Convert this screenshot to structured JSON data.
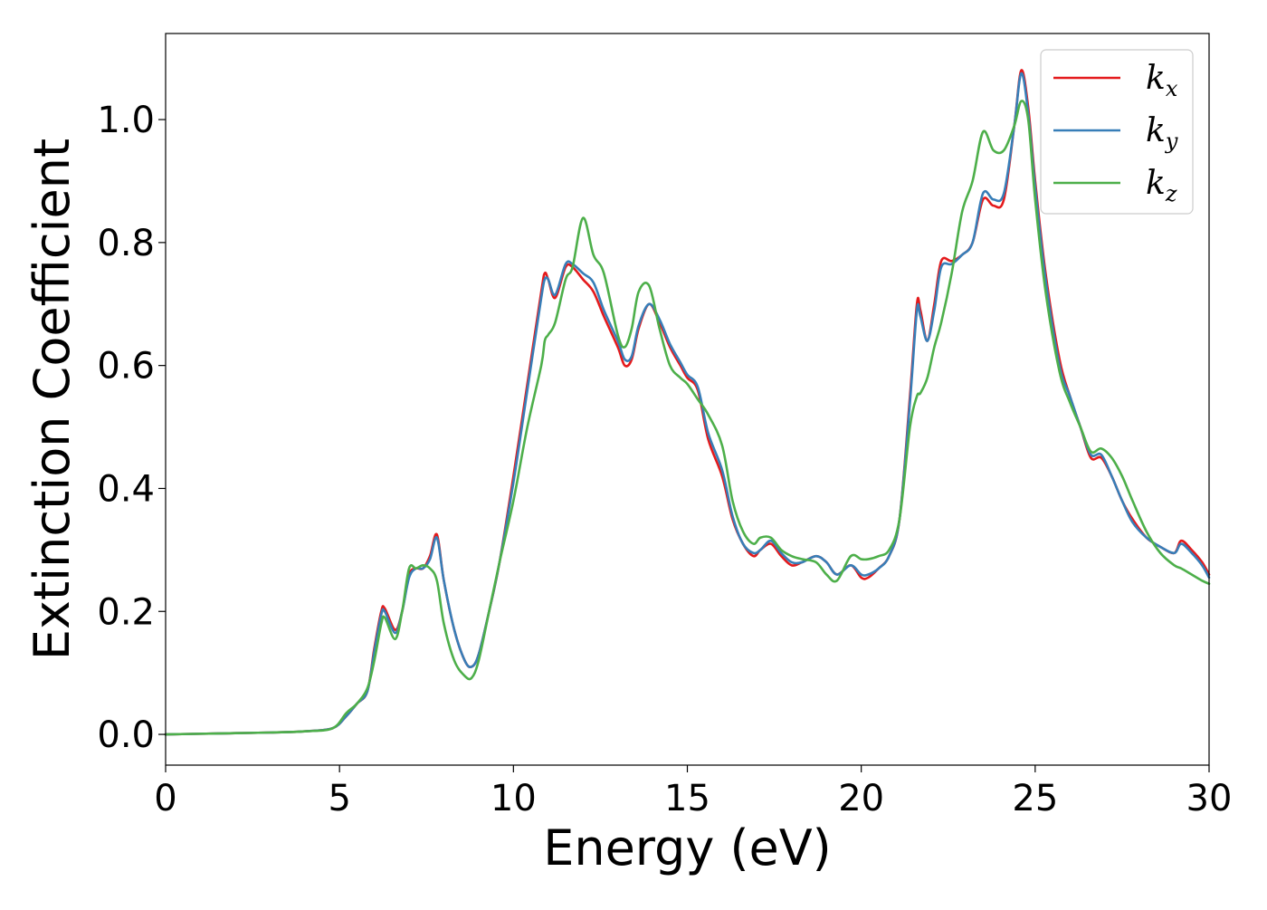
{
  "chart_data": {
    "type": "line",
    "title": "",
    "xlabel": "Energy (eV)",
    "ylabel": "Extinction Coefficient",
    "xlim": [
      0,
      30
    ],
    "ylim": [
      -0.05,
      1.14
    ],
    "xticks": [
      0,
      5,
      10,
      15,
      20,
      25,
      30
    ],
    "xtick_labels": [
      "0",
      "5",
      "10",
      "15",
      "20",
      "25",
      "30"
    ],
    "yticks": [
      0.0,
      0.2,
      0.4,
      0.6,
      0.8,
      1.0
    ],
    "ytick_labels": [
      "0.0",
      "0.2",
      "0.4",
      "0.6",
      "0.8",
      "1.0"
    ],
    "grid": false,
    "legend_position": "top-right",
    "series": [
      {
        "name": "k_x",
        "label_base": "k",
        "label_sub": "x",
        "color": "#e41a1c",
        "x": [
          0,
          1,
          2,
          3,
          4,
          4.8,
          5.2,
          5.5,
          5.8,
          6.0,
          6.2,
          6.3,
          6.6,
          6.8,
          7.0,
          7.2,
          7.4,
          7.6,
          7.8,
          8.0,
          8.3,
          8.6,
          8.8,
          9.0,
          9.3,
          9.6,
          10.0,
          10.4,
          10.8,
          10.9,
          11.0,
          11.2,
          11.5,
          11.7,
          12.0,
          12.3,
          12.6,
          13.0,
          13.2,
          13.4,
          13.6,
          13.9,
          14.2,
          14.5,
          14.8,
          15.0,
          15.3,
          15.6,
          16.0,
          16.3,
          16.6,
          16.9,
          17.1,
          17.4,
          17.7,
          18.0,
          18.3,
          18.7,
          19.0,
          19.3,
          19.7,
          20.0,
          20.2,
          20.5,
          20.8,
          21.1,
          21.4,
          21.6,
          21.7,
          21.9,
          22.1,
          22.3,
          22.6,
          22.9,
          23.2,
          23.5,
          23.8,
          24.1,
          24.4,
          24.6,
          24.8,
          25.0,
          25.3,
          25.7,
          26.0,
          26.3,
          26.6,
          26.9,
          27.2,
          27.5,
          27.8,
          28.2,
          28.6,
          29.0,
          29.2,
          29.5,
          29.8,
          30.0
        ],
        "y": [
          0.0,
          0.001,
          0.002,
          0.003,
          0.005,
          0.01,
          0.03,
          0.05,
          0.07,
          0.14,
          0.2,
          0.205,
          0.17,
          0.2,
          0.26,
          0.27,
          0.27,
          0.29,
          0.325,
          0.25,
          0.17,
          0.12,
          0.11,
          0.13,
          0.2,
          0.28,
          0.42,
          0.57,
          0.72,
          0.75,
          0.74,
          0.71,
          0.76,
          0.76,
          0.74,
          0.72,
          0.68,
          0.63,
          0.6,
          0.61,
          0.66,
          0.7,
          0.67,
          0.63,
          0.6,
          0.58,
          0.56,
          0.48,
          0.42,
          0.35,
          0.31,
          0.29,
          0.3,
          0.31,
          0.29,
          0.275,
          0.28,
          0.29,
          0.28,
          0.26,
          0.275,
          0.255,
          0.255,
          0.27,
          0.29,
          0.35,
          0.55,
          0.7,
          0.69,
          0.64,
          0.7,
          0.77,
          0.77,
          0.78,
          0.8,
          0.87,
          0.86,
          0.87,
          0.99,
          1.08,
          1.02,
          0.9,
          0.75,
          0.61,
          0.55,
          0.5,
          0.45,
          0.45,
          0.42,
          0.38,
          0.35,
          0.32,
          0.305,
          0.295,
          0.315,
          0.3,
          0.28,
          0.26
        ]
      },
      {
        "name": "k_y",
        "label_base": "k",
        "label_sub": "y",
        "color": "#377eb8",
        "x": [
          0,
          1,
          2,
          3,
          4,
          4.8,
          5.2,
          5.5,
          5.8,
          6.0,
          6.2,
          6.3,
          6.6,
          6.8,
          7.0,
          7.2,
          7.4,
          7.6,
          7.8,
          8.0,
          8.3,
          8.6,
          8.8,
          9.0,
          9.3,
          9.6,
          10.0,
          10.4,
          10.8,
          10.9,
          11.0,
          11.2,
          11.5,
          11.7,
          12.0,
          12.3,
          12.6,
          13.0,
          13.2,
          13.4,
          13.6,
          13.9,
          14.2,
          14.5,
          14.8,
          15.0,
          15.3,
          15.6,
          16.0,
          16.3,
          16.6,
          16.9,
          17.1,
          17.4,
          17.7,
          18.0,
          18.3,
          18.7,
          19.0,
          19.3,
          19.7,
          20.0,
          20.2,
          20.5,
          20.8,
          21.1,
          21.4,
          21.6,
          21.7,
          21.9,
          22.1,
          22.3,
          22.6,
          22.9,
          23.2,
          23.5,
          23.8,
          24.1,
          24.4,
          24.6,
          24.8,
          25.0,
          25.3,
          25.7,
          26.0,
          26.3,
          26.6,
          26.9,
          27.2,
          27.5,
          27.8,
          28.2,
          28.6,
          29.0,
          29.2,
          29.5,
          29.8,
          30.0
        ],
        "y": [
          0.0,
          0.001,
          0.002,
          0.003,
          0.005,
          0.01,
          0.03,
          0.05,
          0.07,
          0.135,
          0.195,
          0.2,
          0.165,
          0.2,
          0.255,
          0.27,
          0.27,
          0.285,
          0.32,
          0.25,
          0.17,
          0.12,
          0.11,
          0.13,
          0.2,
          0.28,
          0.41,
          0.56,
          0.71,
          0.74,
          0.74,
          0.715,
          0.765,
          0.765,
          0.75,
          0.735,
          0.69,
          0.64,
          0.61,
          0.615,
          0.665,
          0.7,
          0.675,
          0.635,
          0.605,
          0.585,
          0.565,
          0.49,
          0.43,
          0.355,
          0.31,
          0.295,
          0.3,
          0.315,
          0.295,
          0.28,
          0.28,
          0.29,
          0.28,
          0.26,
          0.275,
          0.26,
          0.26,
          0.27,
          0.29,
          0.35,
          0.54,
          0.69,
          0.68,
          0.64,
          0.69,
          0.76,
          0.765,
          0.78,
          0.8,
          0.88,
          0.87,
          0.88,
          0.99,
          1.075,
          1.01,
          0.89,
          0.74,
          0.6,
          0.55,
          0.5,
          0.455,
          0.455,
          0.42,
          0.38,
          0.345,
          0.32,
          0.305,
          0.295,
          0.31,
          0.295,
          0.275,
          0.255
        ]
      },
      {
        "name": "k_z",
        "label_base": "k",
        "label_sub": "z",
        "color": "#4daf4a",
        "x": [
          0,
          1,
          2,
          3,
          4,
          4.8,
          5.2,
          5.5,
          5.8,
          6.0,
          6.2,
          6.3,
          6.6,
          6.8,
          7.0,
          7.2,
          7.4,
          7.6,
          7.8,
          8.0,
          8.3,
          8.6,
          8.8,
          9.0,
          9.3,
          9.6,
          10.0,
          10.4,
          10.8,
          10.9,
          11.0,
          11.2,
          11.5,
          11.7,
          12.0,
          12.3,
          12.6,
          13.0,
          13.2,
          13.4,
          13.6,
          13.9,
          14.2,
          14.5,
          14.8,
          15.0,
          15.3,
          15.6,
          16.0,
          16.3,
          16.6,
          16.9,
          17.1,
          17.4,
          17.7,
          18.0,
          18.3,
          18.7,
          19.0,
          19.3,
          19.7,
          20.0,
          20.2,
          20.5,
          20.8,
          21.1,
          21.4,
          21.6,
          21.7,
          21.9,
          22.1,
          22.3,
          22.6,
          22.9,
          23.2,
          23.5,
          23.8,
          24.1,
          24.4,
          24.6,
          24.8,
          25.0,
          25.3,
          25.7,
          26.0,
          26.3,
          26.6,
          26.9,
          27.2,
          27.5,
          27.8,
          28.2,
          28.6,
          29.0,
          29.2,
          29.5,
          29.8,
          30.0
        ],
        "y": [
          0.0,
          0.001,
          0.002,
          0.003,
          0.005,
          0.01,
          0.035,
          0.05,
          0.075,
          0.12,
          0.18,
          0.19,
          0.155,
          0.2,
          0.27,
          0.27,
          0.275,
          0.27,
          0.25,
          0.18,
          0.12,
          0.095,
          0.092,
          0.12,
          0.2,
          0.28,
          0.38,
          0.5,
          0.6,
          0.64,
          0.65,
          0.67,
          0.74,
          0.76,
          0.84,
          0.78,
          0.75,
          0.65,
          0.63,
          0.66,
          0.72,
          0.73,
          0.66,
          0.6,
          0.58,
          0.57,
          0.545,
          0.52,
          0.47,
          0.38,
          0.33,
          0.31,
          0.32,
          0.32,
          0.3,
          0.29,
          0.285,
          0.28,
          0.26,
          0.25,
          0.29,
          0.285,
          0.285,
          0.29,
          0.3,
          0.35,
          0.5,
          0.55,
          0.555,
          0.58,
          0.63,
          0.67,
          0.75,
          0.85,
          0.9,
          0.98,
          0.95,
          0.95,
          0.99,
          1.03,
          1.0,
          0.87,
          0.72,
          0.59,
          0.54,
          0.5,
          0.46,
          0.465,
          0.45,
          0.42,
          0.38,
          0.33,
          0.295,
          0.275,
          0.27,
          0.26,
          0.25,
          0.245
        ]
      }
    ]
  }
}
